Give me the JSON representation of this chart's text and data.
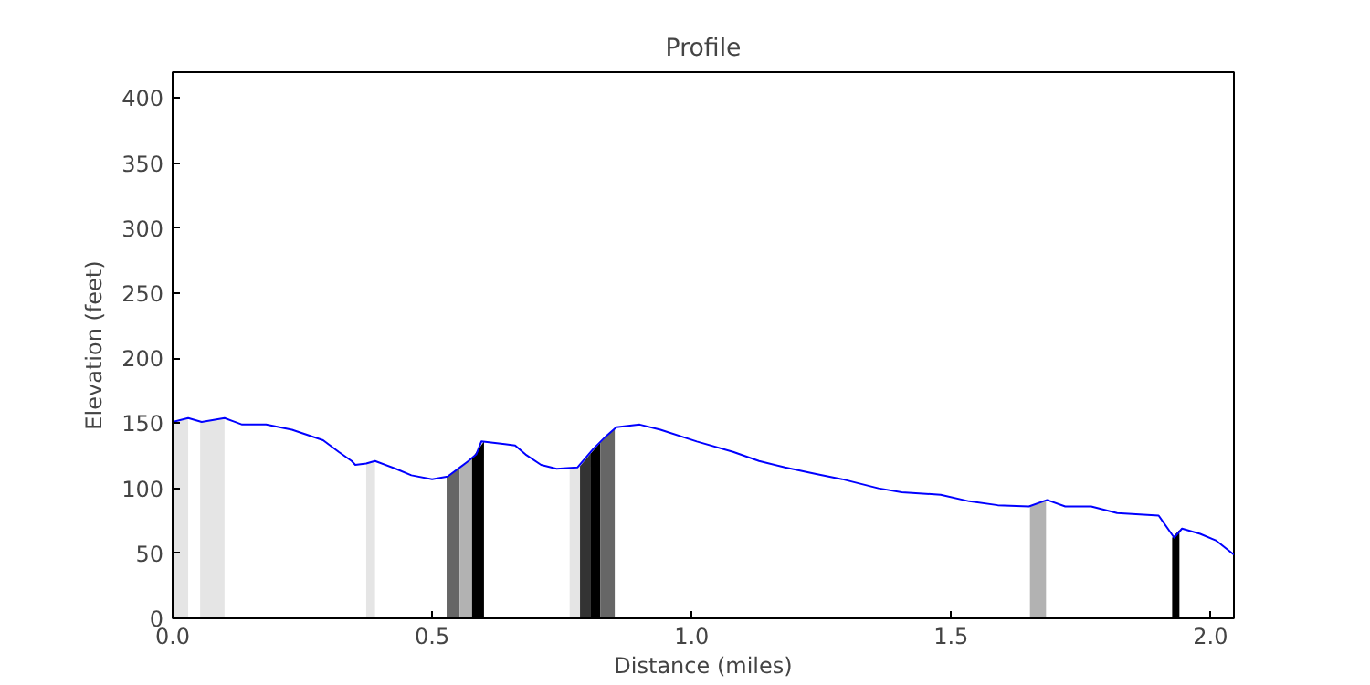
{
  "chart_data": {
    "type": "line",
    "title": "Profile",
    "xlabel": "Distance (miles)",
    "ylabel": "Elevation (feet)",
    "xlim": [
      0,
      2.045
    ],
    "ylim": [
      0,
      420
    ],
    "xticks": [
      {
        "value": 0,
        "label": "0.0"
      },
      {
        "value": 0.5,
        "label": "0.5"
      },
      {
        "value": 1,
        "label": "1.0"
      },
      {
        "value": 1.5,
        "label": "1.5"
      },
      {
        "value": 2,
        "label": "2.0"
      }
    ],
    "yticks": [
      0,
      50,
      100,
      150,
      200,
      250,
      300,
      350,
      400
    ],
    "grid": false,
    "series": [
      {
        "type": "area",
        "color": "#e5e5e5",
        "x": [
          0,
          0.03
        ],
        "values": [
          151,
          154
        ]
      },
      {
        "type": "area",
        "color": "#e5e5e5",
        "x": [
          0.053,
          0.1
        ],
        "values": [
          151,
          154
        ]
      },
      {
        "type": "area",
        "color": "#e5e5e5",
        "x": [
          0.373,
          0.39
        ],
        "values": [
          119,
          121
        ]
      },
      {
        "type": "area",
        "color": "#666666",
        "x": [
          0.528,
          0.553
        ],
        "values": [
          109,
          116
        ]
      },
      {
        "type": "area",
        "color": "#b2b2b2",
        "x": [
          0.553,
          0.577
        ],
        "values": [
          116,
          123
        ]
      },
      {
        "type": "area",
        "color": "#000000",
        "x": [
          0.577,
          0.6
        ],
        "values": [
          123,
          136
        ]
      },
      {
        "type": "area",
        "color": "#e5e5e5",
        "x": [
          0.765,
          0.785
        ],
        "values": [
          115,
          117
        ]
      },
      {
        "type": "area",
        "color": "#333333",
        "x": [
          0.785,
          0.806
        ],
        "values": [
          117,
          127
        ]
      },
      {
        "type": "area",
        "color": "#000000",
        "x": [
          0.806,
          0.824
        ],
        "values": [
          127,
          135
        ]
      },
      {
        "type": "area",
        "color": "#666666",
        "x": [
          0.824,
          0.852
        ],
        "values": [
          135,
          146
        ]
      },
      {
        "type": "area",
        "color": "#b2b2b2",
        "x": [
          1.652,
          1.683
        ],
        "values": [
          86,
          91
        ]
      },
      {
        "type": "area",
        "color": "#000000",
        "x": [
          1.926,
          1.94
        ],
        "values": [
          62,
          68
        ]
      },
      {
        "color": "#0000ff",
        "x": [
          0,
          0.03,
          0.056,
          0.1,
          0.134,
          0.18,
          0.23,
          0.29,
          0.32,
          0.345,
          0.352,
          0.373,
          0.39,
          0.43,
          0.46,
          0.5,
          0.53,
          0.57,
          0.585,
          0.595,
          0.64,
          0.66,
          0.68,
          0.71,
          0.74,
          0.78,
          0.81,
          0.835,
          0.855,
          0.9,
          0.94,
          1.01,
          1.08,
          1.13,
          1.18,
          1.24,
          1.29,
          1.36,
          1.405,
          1.48,
          1.535,
          1.59,
          1.65,
          1.685,
          1.72,
          1.77,
          1.82,
          1.9,
          1.93,
          1.945,
          1.98,
          2.01,
          2.045
        ],
        "values": [
          151,
          154,
          151,
          154,
          149,
          149,
          145,
          137,
          128,
          121,
          118,
          119,
          121,
          115,
          110,
          107,
          109,
          121,
          126,
          136,
          134,
          133,
          126,
          118,
          115,
          116,
          130,
          140,
          147,
          149,
          145,
          136,
          128,
          121,
          116,
          111,
          107,
          100,
          97,
          95,
          90,
          87,
          86,
          91,
          86,
          86,
          81,
          79,
          62,
          69,
          65,
          60,
          49
        ]
      }
    ]
  }
}
